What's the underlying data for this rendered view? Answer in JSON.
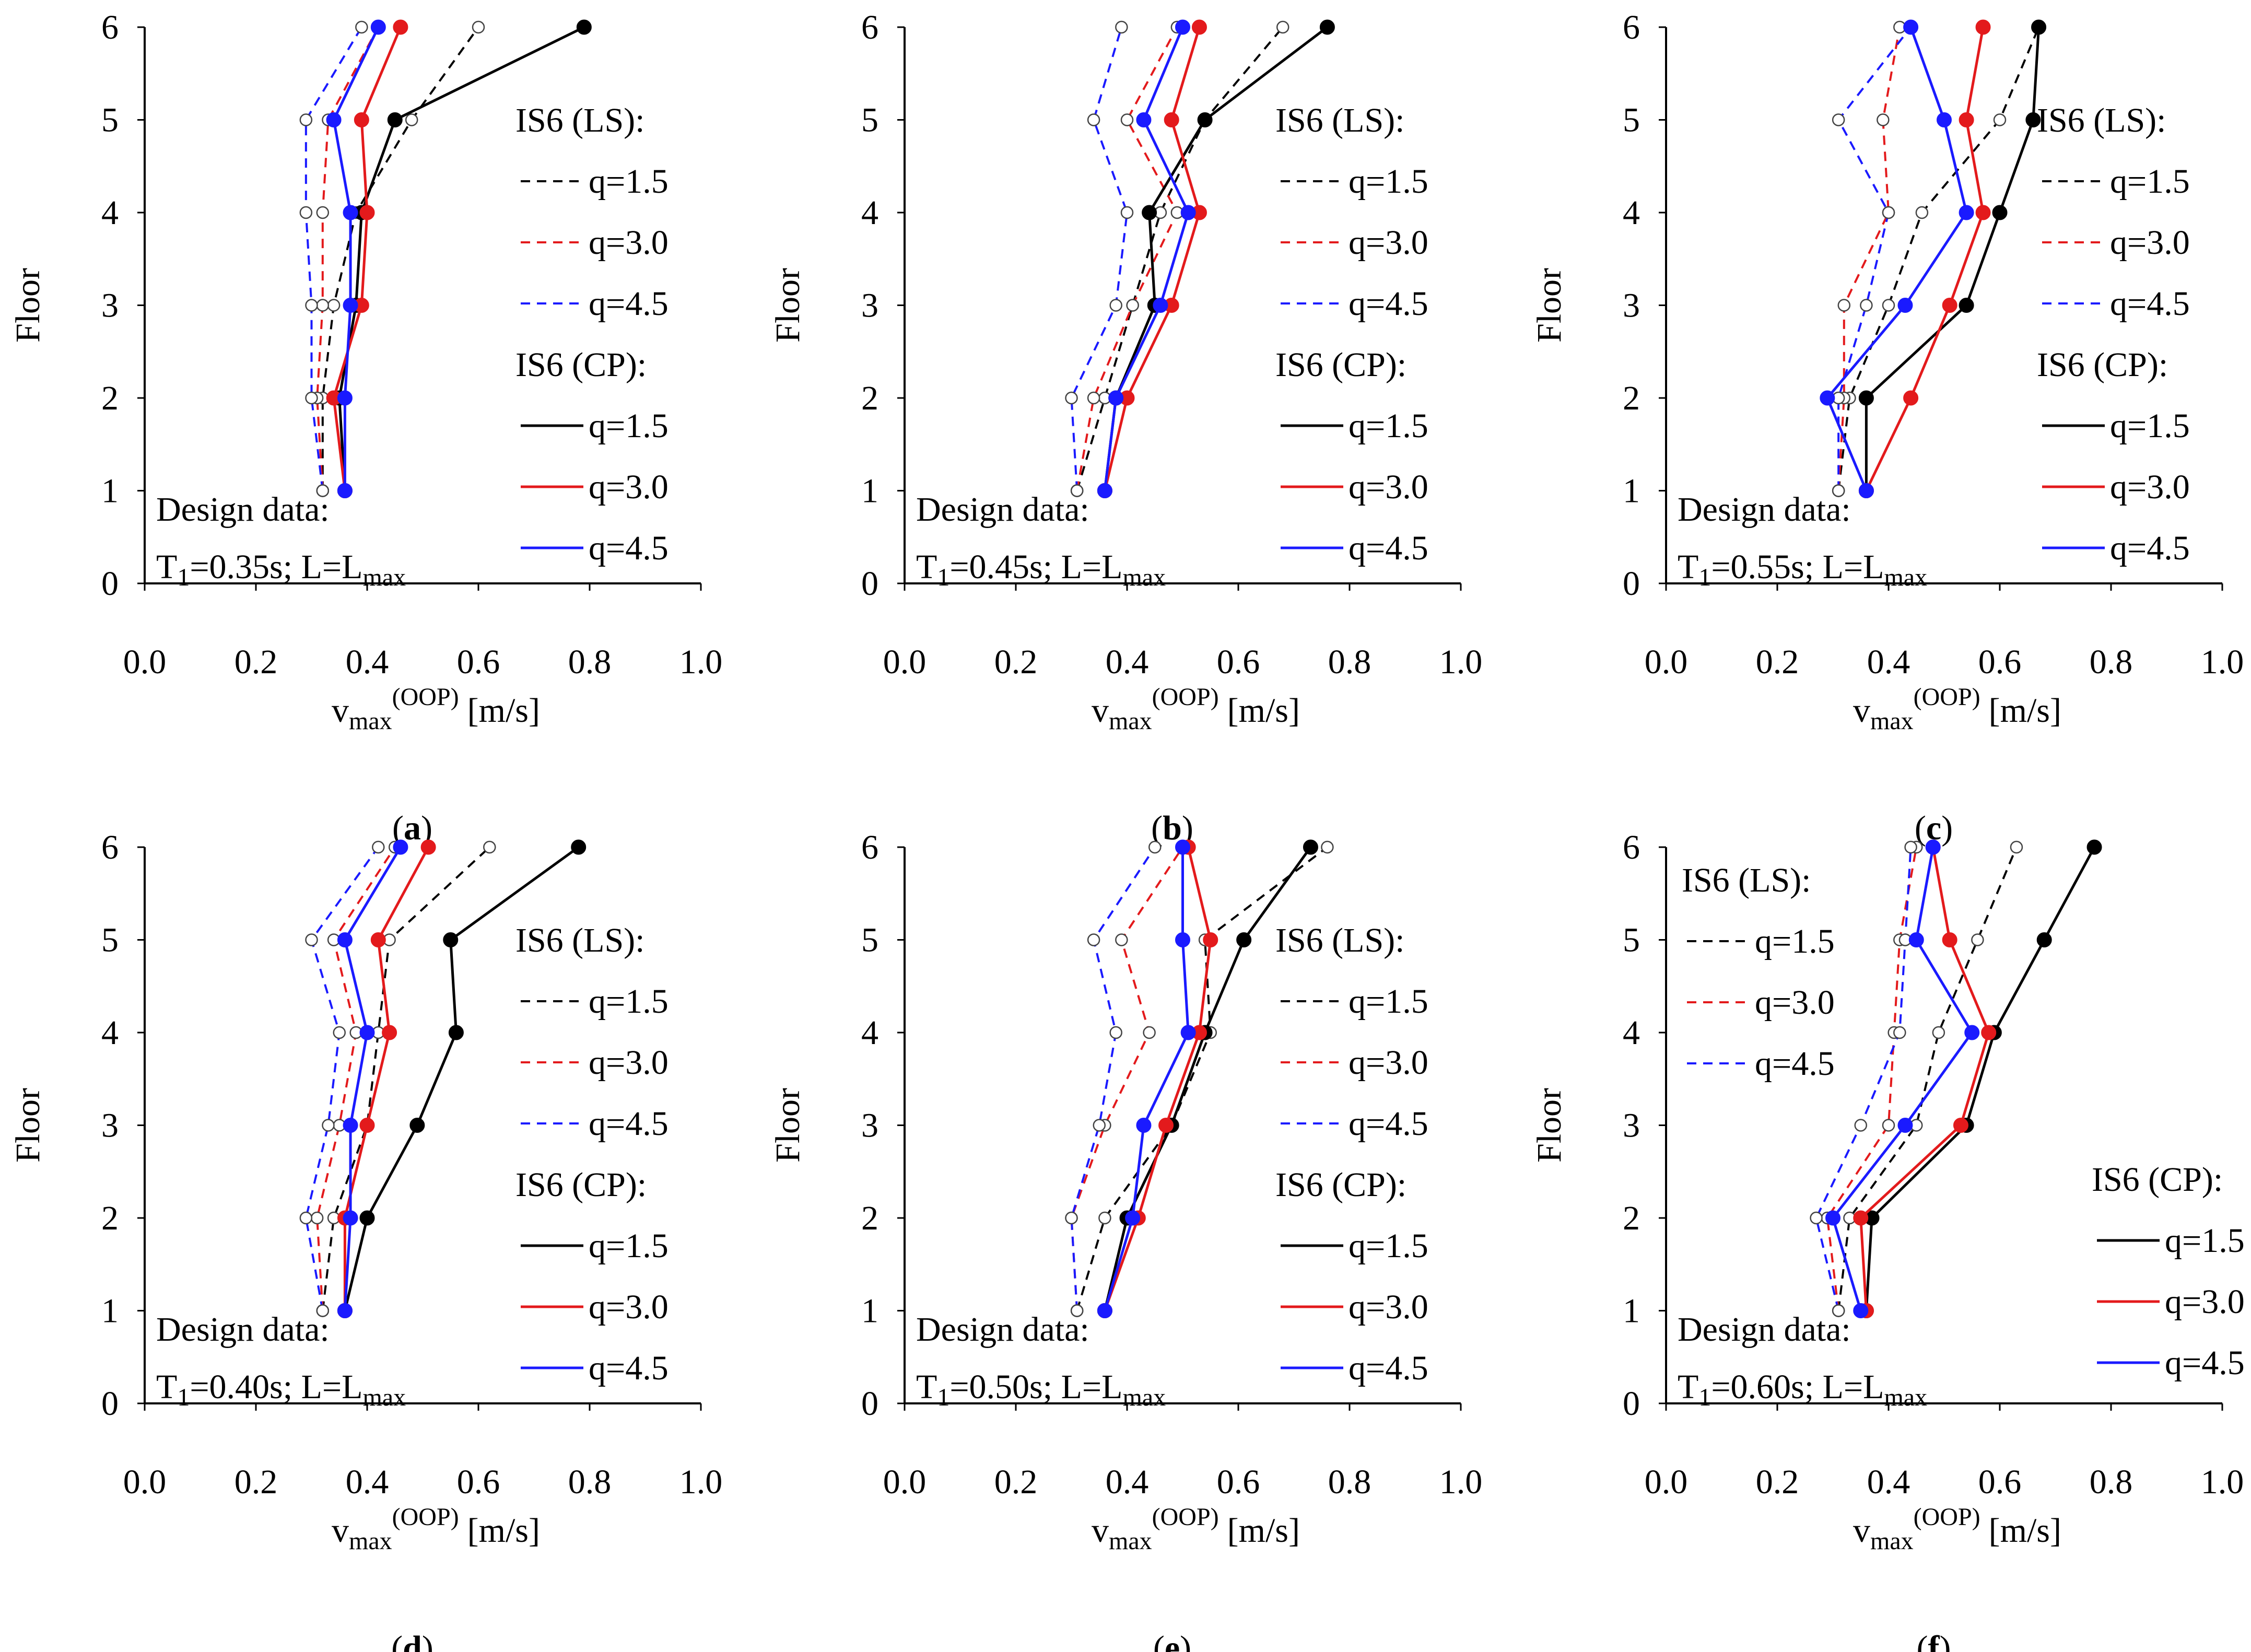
{
  "axis_labels": {
    "x_main": "v",
    "x_sub": "max",
    "x_sup": "(OOP)",
    "x_unit": "[m/s]",
    "y": "Floor"
  },
  "legend": {
    "ls_title": "IS6 (LS):",
    "cp_title": "IS6 (CP):",
    "entries": [
      "q=1.5",
      "q=3.0",
      "q=4.5"
    ]
  },
  "design": {
    "title": "Design data:",
    "t_main": "T",
    "t_sub": "1",
    "l_main": "; L=L",
    "l_sub": "max"
  },
  "colors": {
    "q1.5": "#000000",
    "q3.0": "#e31a1c",
    "q4.5": "#1a1aff",
    "axis": "#000000"
  },
  "chart_data": [
    {
      "type": "line",
      "panel_label": "a",
      "t1": "=0.35s",
      "legend_position": "right",
      "xlim": [
        0,
        1.0
      ],
      "ylim": [
        0,
        6
      ],
      "xticks": [
        "0.0",
        "0.2",
        "0.4",
        "0.6",
        "0.8",
        "1.0"
      ],
      "yticks": [
        "0",
        "1",
        "2",
        "3",
        "4",
        "5",
        "6"
      ],
      "floors": [
        1,
        2,
        3,
        4,
        5,
        6
      ],
      "series": [
        {
          "name": "q=1.5",
          "group": "IS6 (LS)",
          "style": "dashed",
          "values": [
            0.32,
            0.32,
            0.34,
            0.38,
            0.48,
            0.6
          ]
        },
        {
          "name": "q=3.0",
          "group": "IS6 (LS)",
          "style": "dashed",
          "values": [
            0.32,
            0.31,
            0.32,
            0.32,
            0.33,
            0.42
          ]
        },
        {
          "name": "q=4.5",
          "group": "IS6 (LS)",
          "style": "dashed",
          "values": [
            0.32,
            0.3,
            0.3,
            0.29,
            0.29,
            0.39
          ]
        },
        {
          "name": "q=1.5",
          "group": "IS6 (CP)",
          "style": "solid",
          "values": [
            0.36,
            0.35,
            0.38,
            0.39,
            0.45,
            0.79
          ]
        },
        {
          "name": "q=3.0",
          "group": "IS6 (CP)",
          "style": "solid",
          "values": [
            0.36,
            0.34,
            0.39,
            0.4,
            0.39,
            0.46
          ]
        },
        {
          "name": "q=4.5",
          "group": "IS6 (CP)",
          "style": "solid",
          "values": [
            0.36,
            0.36,
            0.37,
            0.37,
            0.34,
            0.42
          ]
        }
      ]
    },
    {
      "type": "line",
      "panel_label": "b",
      "t1": "=0.45s",
      "legend_position": "right",
      "xlim": [
        0,
        1.0
      ],
      "ylim": [
        0,
        6
      ],
      "xticks": [
        "0.0",
        "0.2",
        "0.4",
        "0.6",
        "0.8",
        "1.0"
      ],
      "yticks": [
        "0",
        "1",
        "2",
        "3",
        "4",
        "5",
        "6"
      ],
      "floors": [
        1,
        2,
        3,
        4,
        5,
        6
      ],
      "series": [
        {
          "name": "q=1.5",
          "group": "IS6 (LS)",
          "style": "dashed",
          "values": [
            0.31,
            0.36,
            0.41,
            0.46,
            0.54,
            0.68
          ]
        },
        {
          "name": "q=3.0",
          "group": "IS6 (LS)",
          "style": "dashed",
          "values": [
            0.31,
            0.34,
            0.41,
            0.49,
            0.4,
            0.49
          ]
        },
        {
          "name": "q=4.5",
          "group": "IS6 (LS)",
          "style": "dashed",
          "values": [
            0.31,
            0.3,
            0.38,
            0.4,
            0.34,
            0.39
          ]
        },
        {
          "name": "q=1.5",
          "group": "IS6 (CP)",
          "style": "solid",
          "values": [
            0.36,
            0.38,
            0.45,
            0.44,
            0.54,
            0.76
          ]
        },
        {
          "name": "q=3.0",
          "group": "IS6 (CP)",
          "style": "solid",
          "values": [
            0.36,
            0.4,
            0.48,
            0.53,
            0.48,
            0.53
          ]
        },
        {
          "name": "q=4.5",
          "group": "IS6 (CP)",
          "style": "solid",
          "values": [
            0.36,
            0.38,
            0.46,
            0.51,
            0.43,
            0.5
          ]
        }
      ]
    },
    {
      "type": "line",
      "panel_label": "c",
      "t1": "=0.55s",
      "legend_position": "right",
      "xlim": [
        0,
        1.0
      ],
      "ylim": [
        0,
        6
      ],
      "xticks": [
        "0.0",
        "0.2",
        "0.4",
        "0.6",
        "0.8",
        "1.0"
      ],
      "yticks": [
        "0",
        "1",
        "2",
        "3",
        "4",
        "5",
        "6"
      ],
      "floors": [
        1,
        2,
        3,
        4,
        5,
        6
      ],
      "series": [
        {
          "name": "q=1.5",
          "group": "IS6 (LS)",
          "style": "dashed",
          "values": [
            0.31,
            0.33,
            0.4,
            0.46,
            0.6,
            0.67
          ]
        },
        {
          "name": "q=3.0",
          "group": "IS6 (LS)",
          "style": "dashed",
          "values": [
            0.31,
            0.32,
            0.32,
            0.4,
            0.39,
            0.42
          ]
        },
        {
          "name": "q=4.5",
          "group": "IS6 (LS)",
          "style": "dashed",
          "values": [
            0.31,
            0.31,
            0.36,
            0.4,
            0.31,
            0.44
          ]
        },
        {
          "name": "q=1.5",
          "group": "IS6 (CP)",
          "style": "solid",
          "values": [
            0.36,
            0.36,
            0.54,
            0.6,
            0.66,
            0.67
          ]
        },
        {
          "name": "q=3.0",
          "group": "IS6 (CP)",
          "style": "solid",
          "values": [
            0.36,
            0.44,
            0.51,
            0.57,
            0.54,
            0.57
          ]
        },
        {
          "name": "q=4.5",
          "group": "IS6 (CP)",
          "style": "solid",
          "values": [
            0.36,
            0.29,
            0.43,
            0.54,
            0.5,
            0.44
          ]
        }
      ]
    },
    {
      "type": "line",
      "panel_label": "d",
      "t1": "=0.40s",
      "legend_position": "right",
      "xlim": [
        0,
        1.0
      ],
      "ylim": [
        0,
        6
      ],
      "xticks": [
        "0.0",
        "0.2",
        "0.4",
        "0.6",
        "0.8",
        "1.0"
      ],
      "yticks": [
        "0",
        "1",
        "2",
        "3",
        "4",
        "5",
        "6"
      ],
      "floors": [
        1,
        2,
        3,
        4,
        5,
        6
      ],
      "series": [
        {
          "name": "q=1.5",
          "group": "IS6 (LS)",
          "style": "dashed",
          "values": [
            0.32,
            0.34,
            0.4,
            0.42,
            0.44,
            0.62
          ]
        },
        {
          "name": "q=3.0",
          "group": "IS6 (LS)",
          "style": "dashed",
          "values": [
            0.32,
            0.31,
            0.35,
            0.38,
            0.34,
            0.45
          ]
        },
        {
          "name": "q=4.5",
          "group": "IS6 (LS)",
          "style": "dashed",
          "values": [
            0.32,
            0.29,
            0.33,
            0.35,
            0.3,
            0.42
          ]
        },
        {
          "name": "q=1.5",
          "group": "IS6 (CP)",
          "style": "solid",
          "values": [
            0.36,
            0.4,
            0.49,
            0.56,
            0.55,
            0.78
          ]
        },
        {
          "name": "q=3.0",
          "group": "IS6 (CP)",
          "style": "solid",
          "values": [
            0.36,
            0.36,
            0.4,
            0.44,
            0.42,
            0.51
          ]
        },
        {
          "name": "q=4.5",
          "group": "IS6 (CP)",
          "style": "solid",
          "values": [
            0.36,
            0.37,
            0.37,
            0.4,
            0.36,
            0.46
          ]
        }
      ]
    },
    {
      "type": "line",
      "panel_label": "e",
      "t1": "=0.50s",
      "legend_position": "right",
      "xlim": [
        0,
        1.0
      ],
      "ylim": [
        0,
        6
      ],
      "xticks": [
        "0.0",
        "0.2",
        "0.4",
        "0.6",
        "0.8",
        "1.0"
      ],
      "yticks": [
        "0",
        "1",
        "2",
        "3",
        "4",
        "5",
        "6"
      ],
      "floors": [
        1,
        2,
        3,
        4,
        5,
        6
      ],
      "series": [
        {
          "name": "q=1.5",
          "group": "IS6 (LS)",
          "style": "dashed",
          "values": [
            0.31,
            0.36,
            0.48,
            0.55,
            0.54,
            0.76
          ]
        },
        {
          "name": "q=3.0",
          "group": "IS6 (LS)",
          "style": "dashed",
          "values": [
            0.31,
            0.3,
            0.36,
            0.44,
            0.39,
            0.5
          ]
        },
        {
          "name": "q=4.5",
          "group": "IS6 (LS)",
          "style": "dashed",
          "values": [
            0.31,
            0.3,
            0.35,
            0.38,
            0.34,
            0.45
          ]
        },
        {
          "name": "q=1.5",
          "group": "IS6 (CP)",
          "style": "solid",
          "values": [
            0.36,
            0.4,
            0.48,
            0.54,
            0.61,
            0.73
          ]
        },
        {
          "name": "q=3.0",
          "group": "IS6 (CP)",
          "style": "solid",
          "values": [
            0.36,
            0.42,
            0.47,
            0.53,
            0.55,
            0.51
          ]
        },
        {
          "name": "q=4.5",
          "group": "IS6 (CP)",
          "style": "solid",
          "values": [
            0.36,
            0.41,
            0.43,
            0.51,
            0.5,
            0.5
          ]
        }
      ]
    },
    {
      "type": "line",
      "panel_label": "f",
      "t1": "=0.60s",
      "legend_position": "left-top / right-bottom",
      "xlim": [
        0,
        1.0
      ],
      "ylim": [
        0,
        6
      ],
      "xticks": [
        "0.0",
        "0.2",
        "0.4",
        "0.6",
        "0.8",
        "1.0"
      ],
      "yticks": [
        "0",
        "1",
        "2",
        "3",
        "4",
        "5",
        "6"
      ],
      "floors": [
        1,
        2,
        3,
        4,
        5,
        6
      ],
      "series": [
        {
          "name": "q=1.5",
          "group": "IS6 (LS)",
          "style": "dashed",
          "values": [
            0.31,
            0.33,
            0.45,
            0.49,
            0.56,
            0.63
          ]
        },
        {
          "name": "q=3.0",
          "group": "IS6 (LS)",
          "style": "dashed",
          "values": [
            0.31,
            0.29,
            0.4,
            0.41,
            0.42,
            0.45
          ]
        },
        {
          "name": "q=4.5",
          "group": "IS6 (LS)",
          "style": "dashed",
          "values": [
            0.31,
            0.27,
            0.35,
            0.42,
            0.43,
            0.44
          ]
        },
        {
          "name": "q=1.5",
          "group": "IS6 (CP)",
          "style": "solid",
          "values": [
            0.36,
            0.37,
            0.54,
            0.59,
            0.68,
            0.77
          ]
        },
        {
          "name": "q=3.0",
          "group": "IS6 (CP)",
          "style": "solid",
          "values": [
            0.36,
            0.35,
            0.53,
            0.58,
            0.51,
            0.48
          ]
        },
        {
          "name": "q=4.5",
          "group": "IS6 (CP)",
          "style": "solid",
          "values": [
            0.35,
            0.3,
            0.43,
            0.55,
            0.45,
            0.48
          ]
        }
      ]
    }
  ]
}
